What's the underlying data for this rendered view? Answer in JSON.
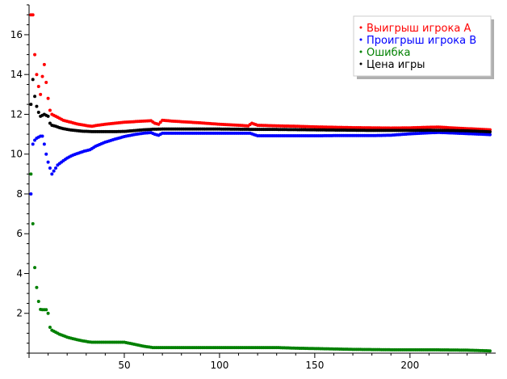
{
  "chart_data": {
    "type": "scatter",
    "title": "",
    "xlabel": "",
    "ylabel": "",
    "xlim": [
      0,
      245
    ],
    "ylim": [
      0,
      17.5
    ],
    "x_ticks": [
      50,
      100,
      150,
      200
    ],
    "y_ticks": [
      2,
      4,
      6,
      8,
      10,
      12,
      14,
      16
    ],
    "grid": false,
    "legend_position": "top-right",
    "series": [
      {
        "name": "Выигрыш игрока A",
        "color": "#ff0000",
        "points": [
          [
            1,
            17.0
          ],
          [
            2,
            17.0
          ],
          [
            3,
            15.0
          ],
          [
            4,
            14.0
          ],
          [
            5,
            13.4
          ],
          [
            6,
            13.0
          ],
          [
            7,
            13.9
          ],
          [
            8,
            14.5
          ],
          [
            9,
            13.6
          ],
          [
            10,
            12.8
          ],
          [
            11,
            12.2
          ],
          [
            12,
            12.0
          ],
          [
            14,
            11.9
          ],
          [
            16,
            11.8
          ],
          [
            18,
            11.7
          ],
          [
            20,
            11.65
          ],
          [
            22,
            11.6
          ],
          [
            25,
            11.52
          ],
          [
            28,
            11.47
          ],
          [
            31,
            11.42
          ],
          [
            33,
            11.4
          ],
          [
            36,
            11.45
          ],
          [
            40,
            11.5
          ],
          [
            45,
            11.55
          ],
          [
            50,
            11.6
          ],
          [
            55,
            11.63
          ],
          [
            60,
            11.66
          ],
          [
            64,
            11.68
          ],
          [
            66,
            11.55
          ],
          [
            68,
            11.5
          ],
          [
            70,
            11.7
          ],
          [
            75,
            11.66
          ],
          [
            80,
            11.63
          ],
          [
            90,
            11.57
          ],
          [
            100,
            11.5
          ],
          [
            110,
            11.45
          ],
          [
            115,
            11.42
          ],
          [
            117,
            11.55
          ],
          [
            120,
            11.45
          ],
          [
            130,
            11.42
          ],
          [
            140,
            11.4
          ],
          [
            150,
            11.37
          ],
          [
            160,
            11.35
          ],
          [
            170,
            11.33
          ],
          [
            180,
            11.32
          ],
          [
            190,
            11.31
          ],
          [
            200,
            11.32
          ],
          [
            210,
            11.35
          ],
          [
            215,
            11.36
          ],
          [
            220,
            11.33
          ],
          [
            230,
            11.28
          ],
          [
            240,
            11.23
          ],
          [
            242,
            11.22
          ]
        ]
      },
      {
        "name": "Проигрыш игрока B",
        "color": "#0000ff",
        "points": [
          [
            1,
            8.0
          ],
          [
            2,
            10.5
          ],
          [
            3,
            10.7
          ],
          [
            4,
            10.8
          ],
          [
            5,
            10.85
          ],
          [
            6,
            10.9
          ],
          [
            7,
            10.9
          ],
          [
            8,
            10.5
          ],
          [
            9,
            10.0
          ],
          [
            10,
            9.6
          ],
          [
            11,
            9.3
          ],
          [
            12,
            9.0
          ],
          [
            13,
            9.15
          ],
          [
            14,
            9.3
          ],
          [
            15,
            9.45
          ],
          [
            17,
            9.6
          ],
          [
            20,
            9.8
          ],
          [
            23,
            9.95
          ],
          [
            26,
            10.05
          ],
          [
            29,
            10.15
          ],
          [
            32,
            10.22
          ],
          [
            35,
            10.4
          ],
          [
            40,
            10.6
          ],
          [
            45,
            10.75
          ],
          [
            50,
            10.88
          ],
          [
            55,
            10.98
          ],
          [
            60,
            11.05
          ],
          [
            64,
            11.08
          ],
          [
            66,
            11.0
          ],
          [
            68,
            10.95
          ],
          [
            70,
            11.05
          ],
          [
            80,
            11.05
          ],
          [
            90,
            11.05
          ],
          [
            100,
            11.05
          ],
          [
            110,
            11.05
          ],
          [
            116,
            11.05
          ],
          [
            120,
            10.92
          ],
          [
            130,
            10.92
          ],
          [
            140,
            10.92
          ],
          [
            150,
            10.92
          ],
          [
            160,
            10.93
          ],
          [
            170,
            10.93
          ],
          [
            180,
            10.93
          ],
          [
            190,
            10.95
          ],
          [
            200,
            11.02
          ],
          [
            210,
            11.07
          ],
          [
            215,
            11.09
          ],
          [
            220,
            11.07
          ],
          [
            230,
            11.03
          ],
          [
            240,
            10.99
          ],
          [
            242,
            10.98
          ]
        ]
      },
      {
        "name": "Ошибка",
        "color": "#008000",
        "points": [
          [
            1,
            9.0
          ],
          [
            2,
            6.5
          ],
          [
            3,
            4.3
          ],
          [
            4,
            3.3
          ],
          [
            5,
            2.6
          ],
          [
            6,
            2.2
          ],
          [
            7,
            2.18
          ],
          [
            8,
            2.18
          ],
          [
            9,
            2.18
          ],
          [
            10,
            2.0
          ],
          [
            11,
            1.3
          ],
          [
            12,
            1.15
          ],
          [
            14,
            1.05
          ],
          [
            16,
            0.95
          ],
          [
            18,
            0.88
          ],
          [
            20,
            0.8
          ],
          [
            22,
            0.75
          ],
          [
            25,
            0.68
          ],
          [
            28,
            0.62
          ],
          [
            31,
            0.57
          ],
          [
            33,
            0.55
          ],
          [
            40,
            0.55
          ],
          [
            45,
            0.55
          ],
          [
            50,
            0.55
          ],
          [
            55,
            0.45
          ],
          [
            60,
            0.35
          ],
          [
            65,
            0.28
          ],
          [
            70,
            0.28
          ],
          [
            80,
            0.28
          ],
          [
            90,
            0.28
          ],
          [
            100,
            0.28
          ],
          [
            110,
            0.28
          ],
          [
            120,
            0.28
          ],
          [
            130,
            0.28
          ],
          [
            140,
            0.25
          ],
          [
            150,
            0.23
          ],
          [
            160,
            0.21
          ],
          [
            170,
            0.19
          ],
          [
            180,
            0.18
          ],
          [
            190,
            0.17
          ],
          [
            200,
            0.17
          ],
          [
            210,
            0.17
          ],
          [
            220,
            0.16
          ],
          [
            230,
            0.15
          ],
          [
            240,
            0.12
          ],
          [
            242,
            0.11
          ]
        ]
      },
      {
        "name": "Цена игры",
        "color": "#000000",
        "points": [
          [
            1,
            12.5
          ],
          [
            2,
            13.75
          ],
          [
            3,
            12.9
          ],
          [
            4,
            12.4
          ],
          [
            5,
            12.1
          ],
          [
            6,
            11.9
          ],
          [
            7,
            11.95
          ],
          [
            8,
            12.0
          ],
          [
            9,
            11.95
          ],
          [
            10,
            11.9
          ],
          [
            11,
            11.55
          ],
          [
            12,
            11.45
          ],
          [
            14,
            11.4
          ],
          [
            16,
            11.33
          ],
          [
            18,
            11.28
          ],
          [
            20,
            11.24
          ],
          [
            22,
            11.21
          ],
          [
            25,
            11.18
          ],
          [
            28,
            11.15
          ],
          [
            31,
            11.14
          ],
          [
            33,
            11.13
          ],
          [
            40,
            11.13
          ],
          [
            45,
            11.13
          ],
          [
            50,
            11.14
          ],
          [
            55,
            11.18
          ],
          [
            60,
            11.22
          ],
          [
            65,
            11.25
          ],
          [
            70,
            11.26
          ],
          [
            80,
            11.26
          ],
          [
            90,
            11.26
          ],
          [
            100,
            11.26
          ],
          [
            110,
            11.25
          ],
          [
            120,
            11.24
          ],
          [
            130,
            11.24
          ],
          [
            140,
            11.23
          ],
          [
            150,
            11.22
          ],
          [
            160,
            11.21
          ],
          [
            170,
            11.2
          ],
          [
            180,
            11.19
          ],
          [
            190,
            11.19
          ],
          [
            200,
            11.19
          ],
          [
            210,
            11.2
          ],
          [
            220,
            11.19
          ],
          [
            230,
            11.17
          ],
          [
            240,
            11.13
          ],
          [
            242,
            11.12
          ]
        ]
      }
    ]
  }
}
